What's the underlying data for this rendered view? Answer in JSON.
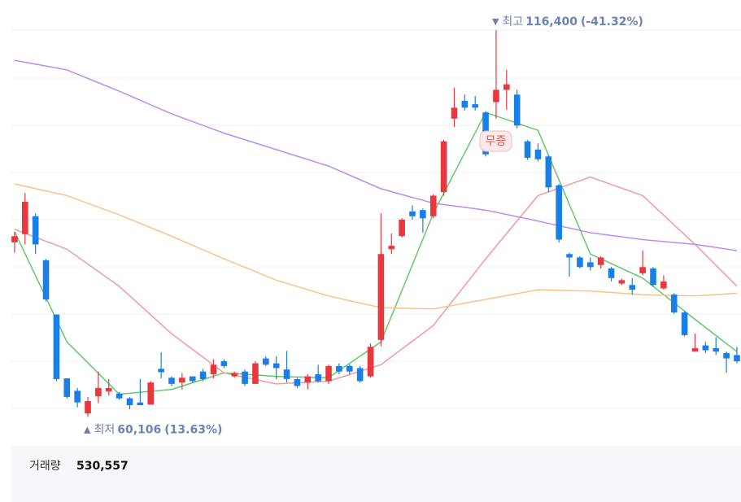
{
  "chart_data": {
    "type": "candlestick",
    "up_color": "#e8383d",
    "down_color": "#1a7ee8",
    "ylim": [
      59200,
      118400
    ],
    "open": [
      85500,
      86700,
      89300,
      82900,
      75000,
      65700,
      63900,
      60600,
      63100,
      63800,
      63500,
      62800,
      62200,
      61900,
      67100,
      65800,
      65100,
      66000,
      66700,
      66300,
      68200,
      66000,
      66700,
      64900,
      68600,
      67900,
      67000,
      65600,
      65100,
      66300,
      65300,
      67500,
      67500,
      67200,
      66000,
      71300,
      84500,
      86400,
      90000,
      90200,
      89300,
      92800,
      103500,
      106100,
      105600,
      104400,
      105900,
      107700,
      107000,
      100200,
      99000,
      98000,
      93800,
      83800,
      83300,
      82600,
      82200,
      81700,
      79500,
      79300,
      81000,
      81700,
      78800,
      77900,
      75300,
      69600,
      70500,
      70100,
      69400,
      69100
    ],
    "high": [
      87000,
      92700,
      89700,
      83100,
      75000,
      65700,
      64300,
      63000,
      66700,
      65600,
      63700,
      63000,
      65600,
      65300,
      69500,
      66000,
      66500,
      66000,
      67100,
      68500,
      68500,
      66700,
      67000,
      68200,
      68900,
      68900,
      69700,
      65800,
      66300,
      67700,
      67700,
      67900,
      67700,
      67500,
      70800,
      89700,
      86800,
      89000,
      90900,
      90400,
      92500,
      100400,
      108000,
      107000,
      106800,
      104600,
      116400,
      110600,
      107700,
      100400,
      99900,
      98200,
      94000,
      84000,
      83500,
      83300,
      83500,
      81900,
      80200,
      80300,
      84300,
      81900,
      80700,
      78100,
      75500,
      72200,
      71000,
      71700,
      69600,
      70300
    ],
    "low": [
      84000,
      85200,
      83800,
      76900,
      65300,
      62800,
      61500,
      60106,
      62100,
      63200,
      62600,
      61200,
      61800,
      61900,
      65700,
      64600,
      64100,
      65100,
      65300,
      65700,
      67200,
      65800,
      64600,
      64900,
      67500,
      65600,
      65100,
      64300,
      64100,
      65100,
      64900,
      66300,
      66300,
      65100,
      65800,
      70400,
      83800,
      86200,
      88800,
      86900,
      89000,
      92300,
      102300,
      104700,
      104700,
      98000,
      103500,
      104800,
      102100,
      97500,
      97300,
      92800,
      85500,
      80500,
      81700,
      81400,
      81700,
      79800,
      79300,
      77900,
      80700,
      79100,
      78600,
      75100,
      71800,
      69600,
      69400,
      69100,
      66500,
      67900
    ],
    "close": [
      86400,
      91400,
      85200,
      77200,
      65600,
      63000,
      62200,
      62400,
      64300,
      64300,
      62800,
      61800,
      61800,
      65100,
      66600,
      64900,
      65800,
      65300,
      65600,
      67700,
      67500,
      66500,
      64900,
      67900,
      67700,
      67200,
      65600,
      64600,
      66000,
      65300,
      67500,
      66700,
      66700,
      65300,
      70300,
      83800,
      85000,
      88800,
      89300,
      89000,
      92300,
      100200,
      105100,
      105100,
      105100,
      98300,
      107700,
      108500,
      102500,
      97800,
      97600,
      93500,
      85900,
      83300,
      81900,
      81900,
      83300,
      80300,
      80000,
      78600,
      81900,
      79300,
      79800,
      75300,
      72000,
      70100,
      69800,
      69600,
      68600,
      68200
    ],
    "series": [
      {
        "color": "#62c96a",
        "x": [
          0,
          5,
          10,
          15,
          20,
          25,
          30,
          35,
          40,
          45,
          50,
          55,
          60,
          65,
          69
        ],
        "values": [
          87100,
          71000,
          63400,
          64100,
          66500,
          66000,
          65800,
          71000,
          89700,
          104400,
          101800,
          83800,
          80300,
          74300,
          69600
        ]
      },
      {
        "color": "#f29a9a",
        "x": [
          0,
          5,
          10,
          15,
          20,
          25,
          30,
          35,
          40,
          45,
          50,
          55,
          60,
          65,
          69
        ],
        "values": [
          87400,
          84500,
          79100,
          72200,
          66500,
          64900,
          65300,
          67700,
          73400,
          83100,
          92300,
          95000,
          92300,
          85200,
          79100
        ]
      },
      {
        "color": "#f7c28e",
        "x": [
          0,
          5,
          10,
          15,
          20,
          25,
          30,
          35,
          40,
          45,
          50,
          55,
          60,
          65,
          69
        ],
        "values": [
          94000,
          92300,
          89500,
          86400,
          83100,
          80000,
          77700,
          76000,
          75800,
          77200,
          78600,
          78400,
          77900,
          77700,
          78100
        ]
      },
      {
        "color": "#b98cf5",
        "x": [
          0,
          5,
          10,
          15,
          20,
          25,
          30,
          35,
          40,
          45,
          50,
          55,
          60,
          65,
          69
        ],
        "values": [
          112000,
          110600,
          107500,
          104200,
          101400,
          99000,
          96600,
          93300,
          91200,
          90200,
          88600,
          86900,
          85900,
          85200,
          84300
        ]
      }
    ],
    "high_annotation": {
      "marker": "▼",
      "label": "최고",
      "value": 116400,
      "value_label": "116,400",
      "change": "(-41.32%)"
    },
    "low_annotation": {
      "marker": "▲",
      "label": "최저",
      "value": 60106,
      "value_label": "60,106",
      "change": "(13.63%)"
    },
    "events": [
      {
        "label": "무증"
      }
    ],
    "volume": {
      "label": "거래량",
      "value": 530557,
      "value_label": "530,557"
    }
  }
}
